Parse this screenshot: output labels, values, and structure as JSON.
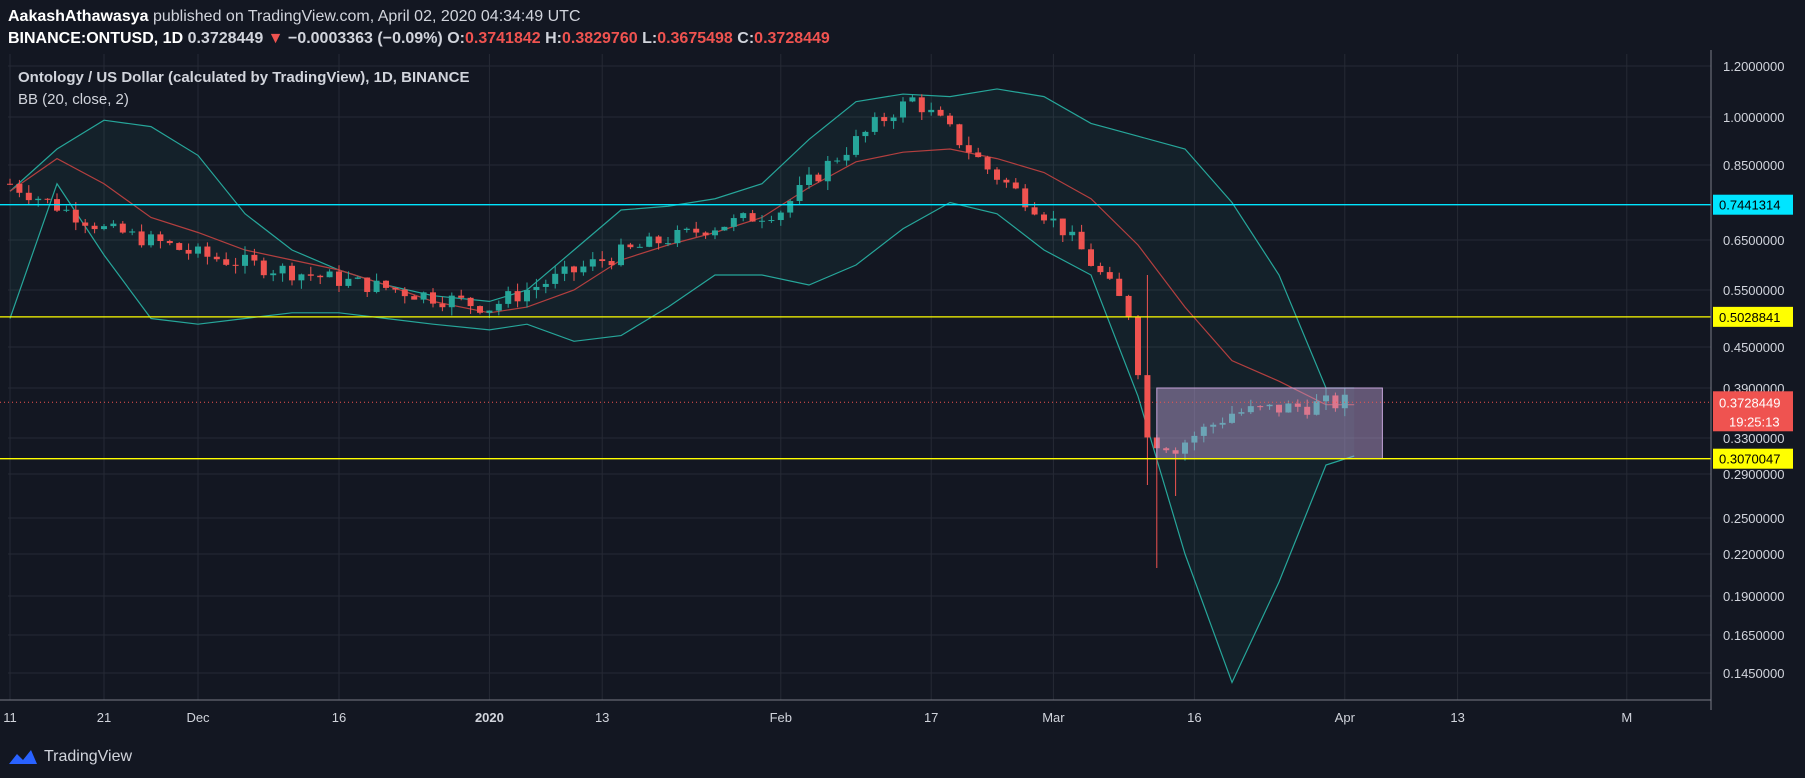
{
  "header": {
    "author": "AakashAthawasya",
    "published_text": "published on TradingView.com, April 02, 2020 04:34:49 UTC",
    "symbol": "BINANCE:ONTUSD, 1D",
    "price": "0.3728449",
    "change": "−0.0003363 (−0.09%)",
    "ohlc": [
      {
        "label": "O:",
        "value": "0.3741842"
      },
      {
        "label": "H:",
        "value": "0.3829760"
      },
      {
        "label": "L:",
        "value": "0.3675498"
      },
      {
        "label": "C:",
        "value": "0.3728449"
      }
    ]
  },
  "legend": {
    "title": "Ontology / US Dollar (calculated by TradingView), 1D, BINANCE",
    "indicator": "BB (20, close, 2)"
  },
  "footer": {
    "brand": "TradingView",
    "icon": "tradingview-logo-icon"
  },
  "colors": {
    "background": "#131722",
    "up": "#26a69a",
    "down": "#ef5350",
    "bb_band": "#26a69a",
    "bb_basis": "#b33f3f",
    "cyan_level": "#00e5ff",
    "yellow_level": "#ffff00",
    "range_box": "#c4a4d9"
  },
  "chart_data": {
    "type": "candlestick",
    "y_ticks": [
      "1.2000000",
      "1.0000000",
      "0.8500000",
      "0.6500000",
      "0.5500000",
      "0.4500000",
      "0.3900000",
      "0.3300000",
      "0.2900000",
      "0.2500000",
      "0.2200000",
      "0.1900000",
      "0.1650000",
      "0.1450000"
    ],
    "x_ticks": [
      {
        "label": "11",
        "day": 0
      },
      {
        "label": "21",
        "day": 10
      },
      {
        "label": "Dec",
        "day": 20
      },
      {
        "label": "16",
        "day": 35
      },
      {
        "label": "2020",
        "day": 51
      },
      {
        "label": "13",
        "day": 63
      },
      {
        "label": "Feb",
        "day": 82
      },
      {
        "label": "17",
        "day": 98
      },
      {
        "label": "Mar",
        "day": 111
      },
      {
        "label": "16",
        "day": 126
      },
      {
        "label": "Apr",
        "day": 142
      },
      {
        "label": "13",
        "day": 154
      },
      {
        "label": "M",
        "day": 172
      }
    ],
    "levels": [
      {
        "value": 0.7441314,
        "label": "0.7441314",
        "kind": "cyan"
      },
      {
        "value": 0.5028841,
        "label": "0.5028841",
        "kind": "yellow"
      },
      {
        "value": 0.3070047,
        "label": "0.3070047",
        "kind": "yellow"
      }
    ],
    "last_price": {
      "value": 0.3728449,
      "label": "0.3728449",
      "countdown": "19:25:13"
    },
    "range_box": {
      "start_day": 122,
      "end_day": 146,
      "top": 0.39,
      "bottom": 0.3070047
    },
    "candle_anchor": {
      "first_day": 0,
      "days": [
        0,
        10,
        20,
        35,
        51,
        63,
        82,
        96,
        104,
        111,
        119,
        121,
        124,
        130,
        142
      ],
      "closes": [
        0.8,
        0.68,
        0.62,
        0.57,
        0.52,
        0.61,
        0.73,
        1.07,
        0.84,
        0.7,
        0.51,
        0.33,
        0.32,
        0.36,
        0.3728449
      ]
    },
    "bollinger": {
      "days": [
        0,
        5,
        10,
        15,
        20,
        25,
        30,
        35,
        40,
        45,
        51,
        55,
        60,
        65,
        70,
        75,
        80,
        85,
        90,
        95,
        100,
        105,
        110,
        115,
        120,
        125,
        130,
        135,
        140,
        143
      ],
      "upper": [
        0.78,
        0.9,
        0.99,
        0.97,
        0.88,
        0.72,
        0.63,
        0.59,
        0.56,
        0.54,
        0.53,
        0.55,
        0.63,
        0.73,
        0.74,
        0.76,
        0.8,
        0.93,
        1.06,
        1.09,
        1.08,
        1.11,
        1.08,
        0.98,
        0.94,
        0.9,
        0.75,
        0.58,
        0.39,
        0.39
      ],
      "basis": [
        0.78,
        0.87,
        0.8,
        0.71,
        0.67,
        0.63,
        0.61,
        0.59,
        0.56,
        0.53,
        0.51,
        0.52,
        0.55,
        0.61,
        0.64,
        0.67,
        0.71,
        0.79,
        0.86,
        0.89,
        0.9,
        0.87,
        0.83,
        0.76,
        0.64,
        0.52,
        0.43,
        0.4,
        0.37,
        0.37
      ],
      "lower": [
        0.5,
        0.8,
        0.62,
        0.5,
        0.49,
        0.5,
        0.51,
        0.51,
        0.5,
        0.49,
        0.48,
        0.49,
        0.46,
        0.47,
        0.52,
        0.58,
        0.58,
        0.56,
        0.6,
        0.68,
        0.75,
        0.72,
        0.63,
        0.58,
        0.38,
        0.22,
        0.14,
        0.2,
        0.3,
        0.31
      ]
    }
  }
}
